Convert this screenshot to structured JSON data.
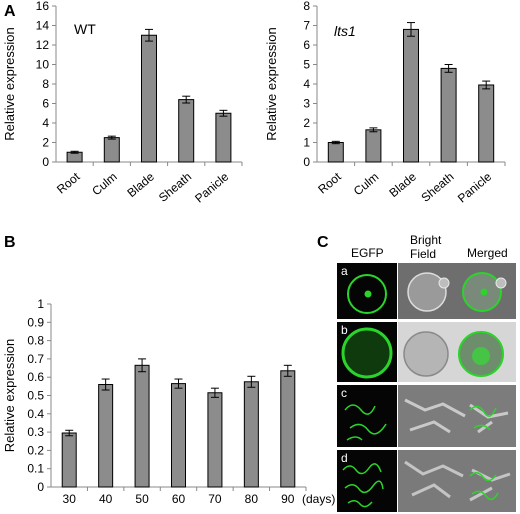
{
  "panels": {
    "A": "A",
    "B": "B",
    "C": "C"
  },
  "colors": {
    "bar": "#8c8c8c",
    "bar_stroke": "#000000",
    "axis": "#888888",
    "micro_bg": "#050505",
    "bright_bg": "#6e6e6e",
    "gfp": "#2bd42b"
  },
  "chart_data": [
    {
      "type": "bar",
      "inset_label": "WT",
      "ylabel": "Relative expression",
      "categories": [
        "Root",
        "Culm",
        "Blade",
        "Sheath",
        "Panicle"
      ],
      "values": [
        1.0,
        2.5,
        13.0,
        6.4,
        5.0
      ],
      "errors": [
        0.1,
        0.15,
        0.6,
        0.35,
        0.3
      ],
      "ylim": [
        0,
        16
      ],
      "yticks": [
        "0",
        "2",
        "4",
        "6",
        "8",
        "10",
        "12",
        "14",
        "16"
      ],
      "grid": false
    },
    {
      "type": "bar",
      "inset_label": "lts1",
      "ylabel": "Relative expression",
      "categories": [
        "Root",
        "Culm",
        "Blade",
        "Sheath",
        "Panicle"
      ],
      "values": [
        1.0,
        1.65,
        6.8,
        4.8,
        3.95
      ],
      "errors": [
        0.06,
        0.1,
        0.35,
        0.2,
        0.2
      ],
      "ylim": [
        0,
        8
      ],
      "yticks": [
        "0",
        "1",
        "2",
        "3",
        "4",
        "5",
        "6",
        "7",
        "8"
      ],
      "grid": false
    },
    {
      "type": "bar",
      "ylabel": "Relative expression",
      "xunit": "(days)",
      "categories": [
        "30",
        "40",
        "50",
        "60",
        "70",
        "80",
        "90"
      ],
      "values": [
        0.295,
        0.56,
        0.665,
        0.565,
        0.515,
        0.575,
        0.635
      ],
      "errors": [
        0.015,
        0.03,
        0.035,
        0.025,
        0.025,
        0.03,
        0.03
      ],
      "ylim": [
        0,
        1
      ],
      "yticks": [
        "0",
        "0.1",
        "0.2",
        "0.3",
        "0.4",
        "0.5",
        "0.6",
        "0.7",
        "0.8",
        "0.9",
        "1"
      ],
      "grid": false
    }
  ],
  "micrographs": {
    "columns": [
      "EGFP",
      "Bright\nField",
      "Merged"
    ],
    "rows": [
      "a",
      "b",
      "c",
      "d"
    ]
  }
}
